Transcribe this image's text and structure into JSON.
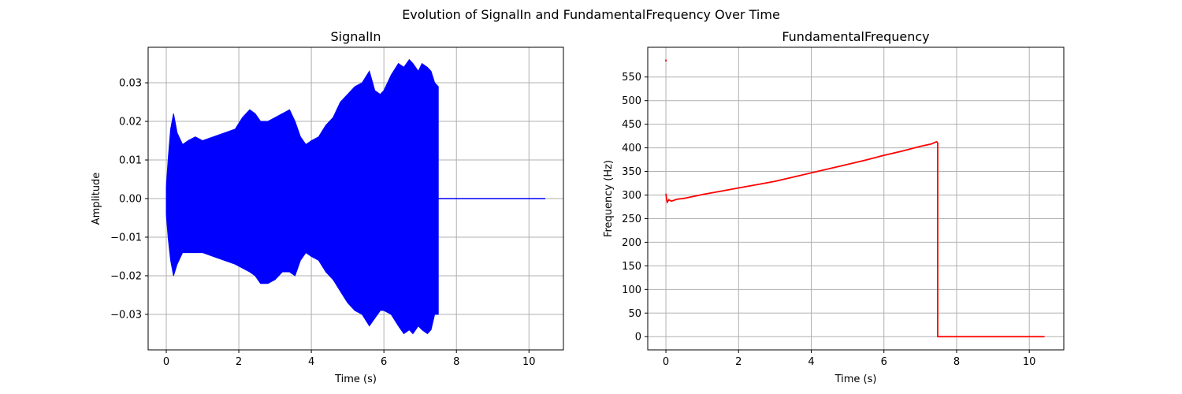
{
  "title": "Evolution of SignalIn and FundamentalFrequency Over Time",
  "chart_data": [
    {
      "type": "line",
      "title": "SignalIn",
      "xlabel": "Time (s)",
      "ylabel": "Amplitude",
      "xlim": [
        -0.5,
        10.95
      ],
      "ylim": [
        -0.0392,
        0.0392
      ],
      "xticks": [
        0,
        2,
        4,
        6,
        8,
        10
      ],
      "yticks": [
        -0.03,
        -0.02,
        -0.01,
        0.0,
        0.01,
        0.02,
        0.03
      ],
      "ytick_labels": [
        "−0.03",
        "−0.02",
        "−0.01",
        "0.00",
        "0.01",
        "0.02",
        "0.03"
      ],
      "grid": true,
      "color": "#0000ff",
      "series": [
        {
          "envelope_time": [
            0.0,
            0.05,
            0.12,
            0.2,
            0.3,
            0.45,
            0.6,
            0.8,
            1.0,
            1.3,
            1.6,
            1.9,
            2.1,
            2.3,
            2.45,
            2.6,
            2.8,
            3.0,
            3.2,
            3.4,
            3.55,
            3.7,
            3.85,
            4.0,
            4.2,
            4.4,
            4.6,
            4.8,
            5.0,
            5.2,
            5.4,
            5.6,
            5.75,
            5.9,
            6.0,
            6.2,
            6.4,
            6.55,
            6.7,
            6.8,
            6.95,
            7.05,
            7.2,
            7.3,
            7.4,
            7.5
          ],
          "envelope_upper": [
            0.003,
            0.01,
            0.018,
            0.022,
            0.017,
            0.014,
            0.015,
            0.016,
            0.015,
            0.016,
            0.017,
            0.018,
            0.021,
            0.023,
            0.022,
            0.02,
            0.02,
            0.021,
            0.022,
            0.023,
            0.02,
            0.016,
            0.014,
            0.015,
            0.016,
            0.019,
            0.021,
            0.025,
            0.027,
            0.029,
            0.03,
            0.033,
            0.028,
            0.027,
            0.028,
            0.032,
            0.035,
            0.034,
            0.036,
            0.035,
            0.033,
            0.035,
            0.034,
            0.033,
            0.03,
            0.029
          ],
          "envelope_lower": [
            -0.004,
            -0.01,
            -0.016,
            -0.02,
            -0.017,
            -0.014,
            -0.014,
            -0.014,
            -0.014,
            -0.015,
            -0.016,
            -0.017,
            -0.018,
            -0.019,
            -0.02,
            -0.022,
            -0.022,
            -0.021,
            -0.019,
            -0.019,
            -0.02,
            -0.016,
            -0.014,
            -0.015,
            -0.016,
            -0.019,
            -0.021,
            -0.024,
            -0.027,
            -0.029,
            -0.03,
            -0.033,
            -0.031,
            -0.029,
            -0.029,
            -0.03,
            -0.033,
            -0.035,
            -0.034,
            -0.035,
            -0.033,
            -0.034,
            -0.035,
            -0.034,
            -0.03,
            -0.03
          ],
          "tail": {
            "x": [
              7.5,
              10.45
            ],
            "y": [
              0.0,
              0.0
            ]
          }
        }
      ]
    },
    {
      "type": "line",
      "title": "FundamentalFrequency",
      "xlabel": "Time (s)",
      "ylabel": "Frequency (Hz)",
      "xlim": [
        -0.5,
        10.95
      ],
      "ylim": [
        -28,
        613
      ],
      "xticks": [
        0,
        2,
        4,
        6,
        8,
        10
      ],
      "yticks": [
        0,
        50,
        100,
        150,
        200,
        250,
        300,
        350,
        400,
        450,
        500,
        550
      ],
      "grid": true,
      "color": "#ff0000",
      "series": [
        {
          "x": [
            0.0,
            0.02,
            0.04,
            0.08,
            0.15,
            0.3,
            0.5,
            1.0,
            1.5,
            2.0,
            2.5,
            3.0,
            3.5,
            4.0,
            4.5,
            5.0,
            5.5,
            6.0,
            6.5,
            7.0,
            7.3,
            7.45,
            7.48,
            7.48,
            10.42
          ],
          "y": [
            303,
            290,
            285,
            290,
            287,
            291,
            293,
            301,
            308,
            315,
            322,
            329,
            338,
            347,
            356,
            365,
            374,
            384,
            393,
            403,
            408,
            413,
            410,
            0,
            0
          ]
        },
        {
          "x": [
            0.0,
            0.0
          ],
          "y": [
            583,
            587
          ]
        }
      ]
    }
  ]
}
